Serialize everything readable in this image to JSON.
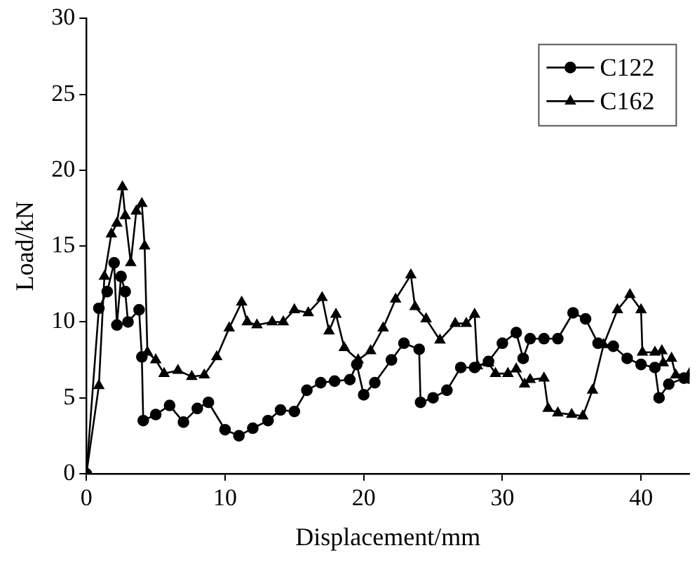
{
  "chart_data": {
    "type": "line",
    "xlabel": "Displacement/mm",
    "ylabel": "Load/kN",
    "xlim": [
      0,
      43.5
    ],
    "xticks": [
      0,
      10,
      20,
      30,
      40
    ],
    "ylim": [
      0,
      30
    ],
    "yticks": [
      0,
      5,
      10,
      15,
      20,
      25,
      30
    ],
    "grid": false,
    "legend": "top right",
    "line_style": "solid",
    "series": [
      {
        "name": "C122",
        "color": "#000000",
        "marker": "circle",
        "x": [
          0,
          0.9,
          1.5,
          2,
          2.2,
          2.5,
          2.8,
          3,
          3.8,
          4,
          4.1,
          5,
          6,
          7,
          8,
          8.8,
          10,
          11,
          12,
          13.1,
          14,
          15,
          15.9,
          16.9,
          17.9,
          19,
          19.5,
          20,
          20.8,
          22,
          22.9,
          24,
          24.1,
          25,
          26,
          27,
          28,
          29,
          30,
          31,
          31.5,
          32,
          33,
          34,
          35.1,
          36,
          36.9,
          38,
          39,
          40,
          41,
          41.3,
          42,
          43.1,
          43.5
        ],
        "values": [
          0,
          10.9,
          12,
          13.9,
          9.8,
          13,
          12,
          10,
          10.8,
          7.7,
          3.5,
          3.9,
          4.5,
          3.4,
          4.3,
          4.7,
          2.9,
          2.5,
          3,
          3.5,
          4.2,
          4.1,
          5.5,
          6,
          6.1,
          6.2,
          7.2,
          5.2,
          6,
          7.5,
          8.6,
          8.2,
          4.7,
          5,
          5.5,
          7,
          7,
          7.4,
          8.6,
          9.3,
          7.6,
          8.9,
          8.9,
          8.9,
          10.6,
          10.2,
          8.6,
          8.4,
          7.6,
          7.2,
          7,
          5,
          5.9,
          6.3,
          6.3
        ]
      },
      {
        "name": "C162",
        "color": "#000000",
        "marker": "triangle",
        "x": [
          0,
          0.9,
          1.3,
          1.8,
          2.2,
          2.6,
          2.8,
          3.2,
          3.6,
          4,
          4.2,
          4.4,
          5,
          5.6,
          6.6,
          7.6,
          8.5,
          9.4,
          10.3,
          11.2,
          11.6,
          12.3,
          13.4,
          14.2,
          15,
          16,
          17,
          17.5,
          18,
          18.6,
          19.6,
          20.5,
          21.4,
          22.3,
          23.4,
          23.7,
          24.5,
          25.5,
          26.6,
          27.4,
          28,
          28.2,
          29,
          29.5,
          30.4,
          31,
          31.6,
          32,
          33,
          33.3,
          34,
          35,
          35.8,
          36.5,
          37.3,
          38.3,
          39.2,
          40,
          40.1,
          41,
          41.5,
          41.6,
          42.2,
          42.5,
          43.5
        ],
        "values": [
          0,
          5.8,
          13,
          15.8,
          16.5,
          18.9,
          17,
          13.9,
          17.3,
          17.8,
          15,
          8,
          7.5,
          6.6,
          6.8,
          6.4,
          6.5,
          7.7,
          9.6,
          11.3,
          10,
          9.8,
          10,
          10,
          10.8,
          10.6,
          11.6,
          9.4,
          10.5,
          8.3,
          7.5,
          8.1,
          9.6,
          11.5,
          13.1,
          11,
          10.2,
          8.8,
          9.9,
          9.9,
          10.5,
          7.1,
          7.3,
          6.6,
          6.6,
          6.9,
          5.9,
          6.2,
          6.3,
          4.3,
          4,
          3.9,
          3.8,
          5.5,
          8.5,
          10.8,
          11.8,
          10.8,
          8,
          8,
          8.1,
          7.3,
          7.6,
          6.5,
          6.6
        ]
      }
    ]
  }
}
